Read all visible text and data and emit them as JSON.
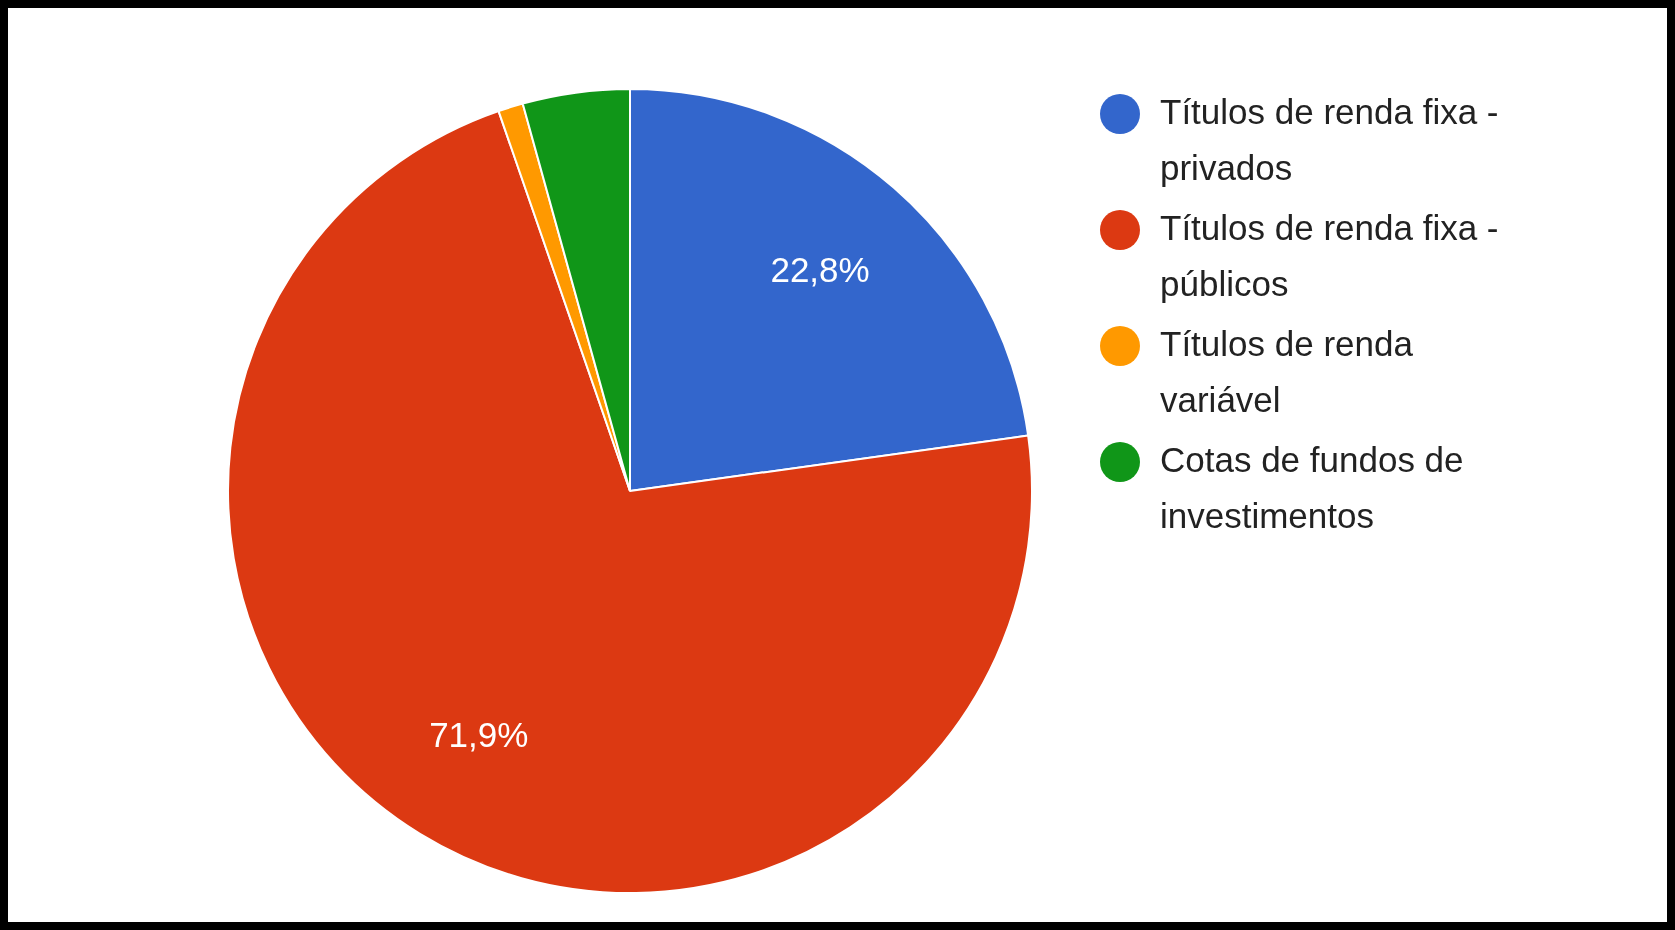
{
  "chart_data": {
    "type": "pie",
    "categories": [
      "Títulos de renda fixa - privados",
      "Títulos de renda fixa - públicos",
      "Títulos de renda variável",
      "Cotas de fundos de investimentos"
    ],
    "values": [
      22.8,
      71.9,
      1.0,
      4.3
    ],
    "colors": [
      "#3366cc",
      "#dc3912",
      "#ff9900",
      "#109618"
    ],
    "value_labels": [
      "22,8%",
      "71,9%",
      null,
      null
    ],
    "legend": "right"
  }
}
